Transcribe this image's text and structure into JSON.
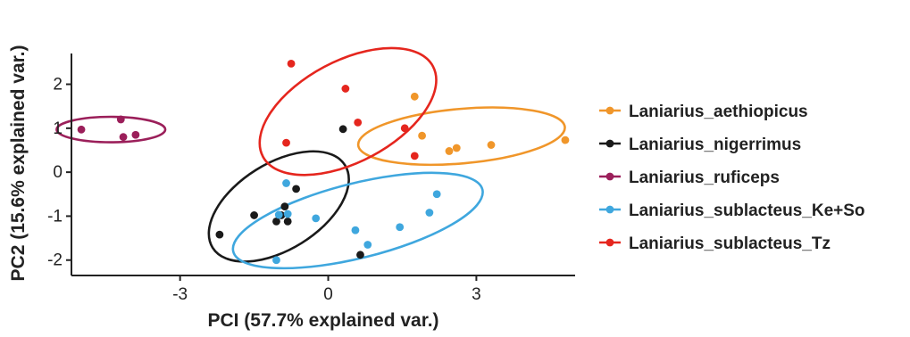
{
  "chart_data": {
    "type": "scatter",
    "title": "",
    "xlabel": "PCI (57.7% explained var.)",
    "ylabel": "PC2 (15.6% explained var.)",
    "xlim": [
      -5.2,
      5.0
    ],
    "ylim": [
      -2.35,
      2.7
    ],
    "x_ticks": [
      -3,
      0,
      3
    ],
    "y_ticks": [
      2,
      1,
      0,
      -1,
      -2
    ],
    "grid": false,
    "legend_position": "right",
    "series": [
      {
        "name": "Laniarius_aethiopicus",
        "color": "#F0962A",
        "points": [
          [
            1.75,
            1.72
          ],
          [
            1.9,
            0.83
          ],
          [
            2.45,
            0.48
          ],
          [
            2.6,
            0.55
          ],
          [
            3.3,
            0.62
          ],
          [
            4.8,
            0.73
          ]
        ],
        "ellipse": {
          "center": [
            2.7,
            0.82
          ],
          "radii": [
            2.1,
            0.62
          ],
          "rotation_deg": -5
        }
      },
      {
        "name": "Laniarius_nigerrimus",
        "color": "#1A1A1A",
        "points": [
          [
            0.3,
            0.98
          ],
          [
            -0.65,
            -0.38
          ],
          [
            -0.88,
            -0.78
          ],
          [
            -0.95,
            -0.98
          ],
          [
            -1.05,
            -1.12
          ],
          [
            -0.82,
            -1.12
          ],
          [
            -1.5,
            -0.98
          ],
          [
            -2.2,
            -1.42
          ],
          [
            0.65,
            -1.88
          ]
        ],
        "ellipse": {
          "center": [
            -1.0,
            -0.78
          ],
          "radii": [
            1.58,
            0.98
          ],
          "rotation_deg": -32
        }
      },
      {
        "name": "Laniarius_ruficeps",
        "color": "#9B1F5A",
        "points": [
          [
            -5.0,
            0.97
          ],
          [
            -4.2,
            1.2
          ],
          [
            -4.15,
            0.8
          ],
          [
            -3.9,
            0.85
          ]
        ],
        "ellipse": {
          "center": [
            -4.4,
            0.97
          ],
          "radii": [
            1.1,
            0.29
          ],
          "rotation_deg": 0
        }
      },
      {
        "name": "Laniarius_sublacteus_Ke+So",
        "color": "#3FA7DE",
        "points": [
          [
            -0.85,
            -0.25
          ],
          [
            -1.0,
            -0.97
          ],
          [
            -0.82,
            -0.95
          ],
          [
            -0.25,
            -1.05
          ],
          [
            0.55,
            -1.32
          ],
          [
            0.8,
            -1.65
          ],
          [
            1.45,
            -1.25
          ],
          [
            2.05,
            -0.92
          ],
          [
            2.2,
            -0.5
          ],
          [
            -1.05,
            -2.0
          ]
        ],
        "ellipse": {
          "center": [
            0.6,
            -1.1
          ],
          "radii": [
            2.6,
            0.85
          ],
          "rotation_deg": -14
        }
      },
      {
        "name": "Laniarius_sublacteus_Tz",
        "color": "#E5261E",
        "points": [
          [
            -0.75,
            2.47
          ],
          [
            0.35,
            1.9
          ],
          [
            0.6,
            1.13
          ],
          [
            1.55,
            1.0
          ],
          [
            1.75,
            0.37
          ],
          [
            -0.85,
            0.67
          ]
        ],
        "ellipse": {
          "center": [
            0.4,
            1.38
          ],
          "radii": [
            1.95,
            1.15
          ],
          "rotation_deg": -28
        }
      }
    ]
  }
}
